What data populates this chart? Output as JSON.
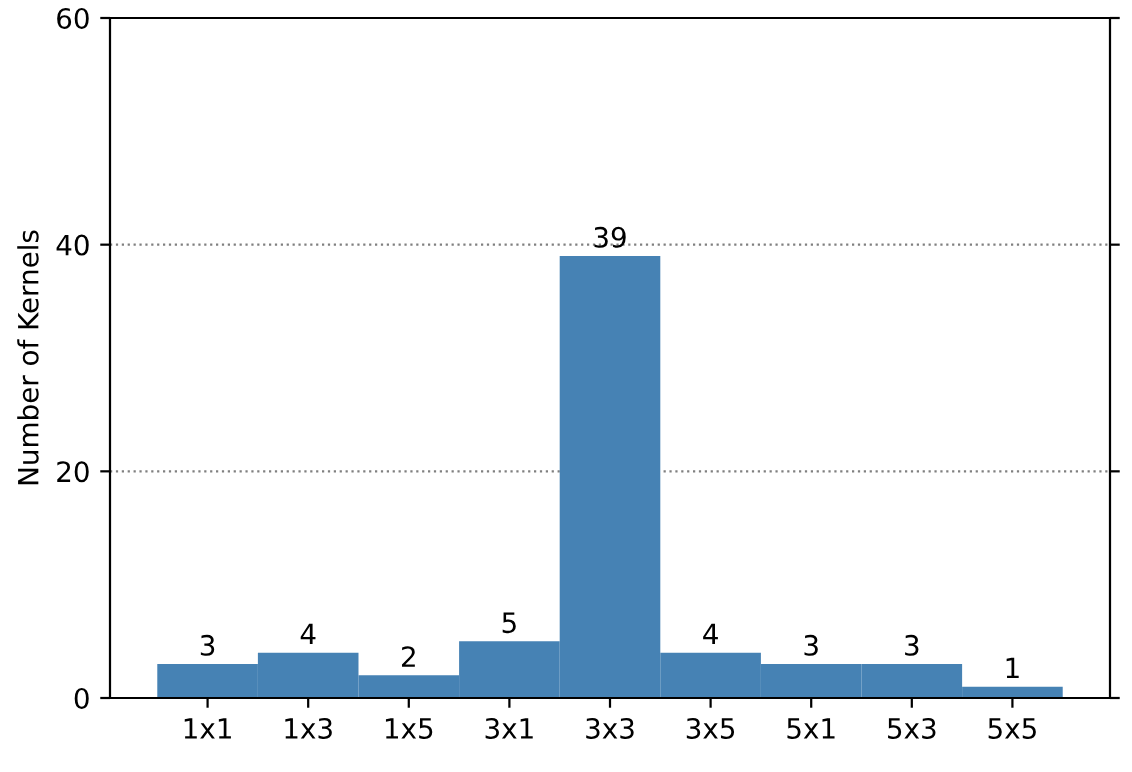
{
  "chart_data": {
    "type": "bar",
    "ylabel": "Number of Kernels",
    "categories": [
      "1x1",
      "1x3",
      "1x5",
      "3x1",
      "3x3",
      "3x5",
      "5x1",
      "5x3",
      "5x5"
    ],
    "values": [
      3,
      4,
      2,
      5,
      39,
      4,
      3,
      3,
      1
    ],
    "color": "#4682b4",
    "ylim": [
      0,
      60
    ],
    "yticks": [
      0,
      20,
      40,
      60
    ],
    "grid": "y",
    "data_labels": true
  }
}
